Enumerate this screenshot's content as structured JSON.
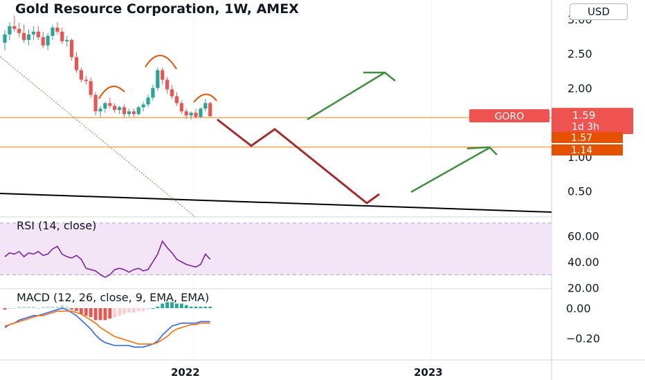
{
  "header": {
    "title": "Gold Resource Corporation, 1W, AMEX",
    "currency": "USD"
  },
  "price_scale": {
    "ticks": [
      "3.00",
      "2.50",
      "2.00",
      "1.00",
      "0.50"
    ],
    "ticker_tag": "GORO",
    "last_price": "1.59",
    "countdown": "1d 3h",
    "level_1": "1.57",
    "level_2": "1.14"
  },
  "indicators": {
    "rsi_label": "RSI (14, close)",
    "rsi_ticks": [
      "60.00",
      "40.00",
      "20.00"
    ],
    "macd_label": "MACD (12, 26, close, 9, EMA, EMA)",
    "macd_ticks": [
      "0.00",
      "−0.20"
    ]
  },
  "time_axis": {
    "labels": [
      "2022",
      "2023"
    ]
  },
  "colors": {
    "up": "#26a69a",
    "down": "#ef5350",
    "level_line": "#f57c00",
    "projection_up": "#3d8f3d",
    "projection_down": "#a52a2a",
    "rsi_line": "#7b1fa2",
    "rsi_band": "#f3e5f5",
    "macd_line": "#2962ff",
    "signal_line": "#ff6d00"
  },
  "chart_data": [
    {
      "type": "candlestick",
      "title": "Gold Resource Corporation, 1W, AMEX",
      "ylim": [
        0.3,
        3.1
      ],
      "x_range_weeks": [
        -56,
        110
      ],
      "x_ticks": [
        {
          "label": "2022",
          "week": 0
        },
        {
          "label": "2023",
          "week": 52
        }
      ],
      "candles": [
        {
          "o": 2.66,
          "h": 2.84,
          "l": 2.55,
          "c": 2.78
        },
        {
          "o": 2.78,
          "h": 2.96,
          "l": 2.7,
          "c": 2.9
        },
        {
          "o": 2.9,
          "h": 3.05,
          "l": 2.82,
          "c": 2.86
        },
        {
          "o": 2.86,
          "h": 2.95,
          "l": 2.74,
          "c": 2.8
        },
        {
          "o": 2.8,
          "h": 2.92,
          "l": 2.66,
          "c": 2.7
        },
        {
          "o": 2.7,
          "h": 2.85,
          "l": 2.62,
          "c": 2.78
        },
        {
          "o": 2.78,
          "h": 2.9,
          "l": 2.7,
          "c": 2.82
        },
        {
          "o": 2.82,
          "h": 2.9,
          "l": 2.7,
          "c": 2.74
        },
        {
          "o": 2.74,
          "h": 2.82,
          "l": 2.58,
          "c": 2.62
        },
        {
          "o": 2.62,
          "h": 2.8,
          "l": 2.55,
          "c": 2.76
        },
        {
          "o": 2.76,
          "h": 2.92,
          "l": 2.7,
          "c": 2.88
        },
        {
          "o": 2.88,
          "h": 2.96,
          "l": 2.78,
          "c": 2.82
        },
        {
          "o": 2.82,
          "h": 2.88,
          "l": 2.64,
          "c": 2.68
        },
        {
          "o": 2.68,
          "h": 2.76,
          "l": 2.6,
          "c": 2.7
        },
        {
          "o": 2.7,
          "h": 2.72,
          "l": 2.4,
          "c": 2.45
        },
        {
          "o": 2.45,
          "h": 2.52,
          "l": 2.22,
          "c": 2.26
        },
        {
          "o": 2.26,
          "h": 2.3,
          "l": 2.08,
          "c": 2.12
        },
        {
          "o": 2.12,
          "h": 2.18,
          "l": 2.05,
          "c": 2.1
        },
        {
          "o": 2.1,
          "h": 2.16,
          "l": 1.86,
          "c": 1.9
        },
        {
          "o": 1.9,
          "h": 1.94,
          "l": 1.6,
          "c": 1.66
        },
        {
          "o": 1.66,
          "h": 1.74,
          "l": 1.58,
          "c": 1.7
        },
        {
          "o": 1.7,
          "h": 1.8,
          "l": 1.64,
          "c": 1.78
        },
        {
          "o": 1.78,
          "h": 1.86,
          "l": 1.7,
          "c": 1.74
        },
        {
          "o": 1.74,
          "h": 1.78,
          "l": 1.64,
          "c": 1.68
        },
        {
          "o": 1.68,
          "h": 1.74,
          "l": 1.62,
          "c": 1.72
        },
        {
          "o": 1.72,
          "h": 1.76,
          "l": 1.58,
          "c": 1.62
        },
        {
          "o": 1.62,
          "h": 1.7,
          "l": 1.58,
          "c": 1.66
        },
        {
          "o": 1.66,
          "h": 1.7,
          "l": 1.58,
          "c": 1.62
        },
        {
          "o": 1.62,
          "h": 1.74,
          "l": 1.6,
          "c": 1.72
        },
        {
          "o": 1.72,
          "h": 1.8,
          "l": 1.66,
          "c": 1.76
        },
        {
          "o": 1.76,
          "h": 1.9,
          "l": 1.72,
          "c": 1.86
        },
        {
          "o": 1.86,
          "h": 2.05,
          "l": 1.82,
          "c": 2.0
        },
        {
          "o": 2.0,
          "h": 2.3,
          "l": 1.96,
          "c": 2.26
        },
        {
          "o": 2.26,
          "h": 2.3,
          "l": 2.05,
          "c": 2.12
        },
        {
          "o": 2.12,
          "h": 2.16,
          "l": 1.92,
          "c": 1.98
        },
        {
          "o": 1.98,
          "h": 2.04,
          "l": 1.84,
          "c": 1.88
        },
        {
          "o": 1.88,
          "h": 1.94,
          "l": 1.74,
          "c": 1.78
        },
        {
          "o": 1.78,
          "h": 1.82,
          "l": 1.62,
          "c": 1.66
        },
        {
          "o": 1.66,
          "h": 1.7,
          "l": 1.55,
          "c": 1.6
        },
        {
          "o": 1.6,
          "h": 1.66,
          "l": 1.54,
          "c": 1.64
        },
        {
          "o": 1.64,
          "h": 1.7,
          "l": 1.56,
          "c": 1.58
        },
        {
          "o": 1.58,
          "h": 1.72,
          "l": 1.56,
          "c": 1.7
        },
        {
          "o": 1.7,
          "h": 1.84,
          "l": 1.66,
          "c": 1.78
        },
        {
          "o": 1.78,
          "h": 1.8,
          "l": 1.58,
          "c": 1.59
        }
      ],
      "horizontal_levels": [
        1.57,
        1.14
      ],
      "last_price": 1.59
    },
    {
      "type": "line",
      "title": "RSI (14, close)",
      "ylim": [
        20,
        70
      ],
      "bands": [
        30,
        70
      ],
      "values": [
        44,
        47,
        46,
        48,
        44,
        47,
        46,
        48,
        45,
        46,
        50,
        52,
        46,
        44,
        43,
        45,
        42,
        35,
        34,
        33,
        30,
        28,
        30,
        34,
        35,
        34,
        32,
        34,
        35,
        33,
        34,
        40,
        46,
        56,
        51,
        47,
        42,
        40,
        38,
        37,
        36,
        38,
        46,
        42
      ]
    },
    {
      "type": "line",
      "title": "MACD (12, 26, close, 9, EMA, EMA)",
      "ylim": [
        -0.29,
        0.05
      ],
      "series": [
        {
          "values": [
            -0.13,
            -0.11,
            -0.1,
            -0.08,
            -0.07,
            -0.06,
            -0.05,
            -0.05,
            -0.04,
            -0.03,
            -0.02,
            -0.01,
            0.0,
            -0.01,
            -0.03,
            -0.05,
            -0.08,
            -0.11,
            -0.14,
            -0.18,
            -0.21,
            -0.23,
            -0.24,
            -0.25,
            -0.25,
            -0.25,
            -0.25,
            -0.26,
            -0.26,
            -0.26,
            -0.25,
            -0.24,
            -0.22,
            -0.18,
            -0.15,
            -0.12,
            -0.11,
            -0.1,
            -0.1,
            -0.1,
            -0.1,
            -0.09,
            -0.09,
            -0.09
          ]
        },
        {
          "values": [
            -0.12,
            -0.11,
            -0.1,
            -0.09,
            -0.08,
            -0.07,
            -0.06,
            -0.05,
            -0.05,
            -0.04,
            -0.03,
            -0.02,
            -0.02,
            -0.02,
            -0.02,
            -0.03,
            -0.04,
            -0.06,
            -0.08,
            -0.1,
            -0.13,
            -0.15,
            -0.17,
            -0.19,
            -0.2,
            -0.21,
            -0.22,
            -0.23,
            -0.24,
            -0.24,
            -0.24,
            -0.24,
            -0.23,
            -0.21,
            -0.19,
            -0.16,
            -0.14,
            -0.13,
            -0.12,
            -0.11,
            -0.11,
            -0.1,
            -0.1,
            -0.1
          ]
        }
      ],
      "histogram": [
        -0.01,
        0,
        0,
        0.01,
        0.01,
        0.01,
        0.01,
        0,
        0.01,
        0.01,
        0.01,
        0.01,
        0.02,
        0.01,
        -0.01,
        -0.02,
        -0.04,
        -0.05,
        -0.06,
        -0.08,
        -0.08,
        -0.08,
        -0.07,
        -0.06,
        -0.05,
        -0.04,
        -0.03,
        -0.03,
        -0.02,
        -0.02,
        -0.01,
        0,
        0.01,
        0.03,
        0.04,
        0.04,
        0.03,
        0.03,
        0.02,
        0.01,
        0.01,
        0.01,
        0.01,
        0.01
      ]
    }
  ]
}
